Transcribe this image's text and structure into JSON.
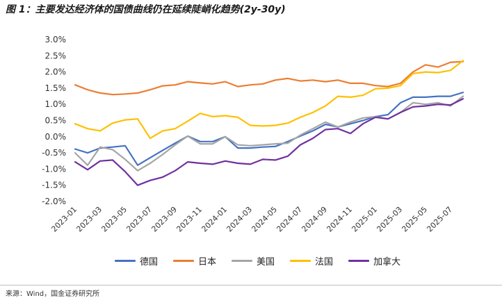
{
  "chart_data": {
    "type": "line",
    "title": "图 1：主要发达经济体的国债曲线仍在延续陡峭化趋势(2y-30y)",
    "xlabel": "",
    "ylabel": "",
    "ylim": [
      -2.0,
      3.0
    ],
    "yticks": [
      3.0,
      2.5,
      2.0,
      1.5,
      1.0,
      0.5,
      0.0,
      -0.5,
      -1.0,
      -1.5,
      -2.0
    ],
    "ytick_labels": [
      "3.0%",
      "2.5%",
      "2.0%",
      "1.5%",
      "1.0%",
      "0.5%",
      "0.0%",
      "-0.5%",
      "-1.0%",
      "-1.5%",
      "-2.0%"
    ],
    "grid": false,
    "legend_position": "bottom",
    "x": [
      "2023-01",
      "2023-02",
      "2023-03",
      "2023-04",
      "2023-05",
      "2023-06",
      "2023-07",
      "2023-08",
      "2023-09",
      "2023-10",
      "2023-11",
      "2023-12",
      "2024-01",
      "2024-02",
      "2024-03",
      "2024-04",
      "2024-05",
      "2024-06",
      "2024-07",
      "2024-08",
      "2024-09",
      "2024-10",
      "2024-11",
      "2024-12",
      "2025-01",
      "2025-02",
      "2025-03",
      "2025-04",
      "2025-05",
      "2025-06",
      "2025-07",
      "2025-08"
    ],
    "series": [
      {
        "name": "德国",
        "color": "#4472C4",
        "values": [
          -0.38,
          -0.5,
          -0.35,
          -0.32,
          -0.28,
          -0.88,
          -0.65,
          -0.42,
          -0.2,
          0.02,
          -0.15,
          -0.15,
          0.0,
          -0.35,
          -0.35,
          -0.32,
          -0.3,
          -0.15,
          0.02,
          0.18,
          0.38,
          0.3,
          0.4,
          0.5,
          0.62,
          0.68,
          1.05,
          1.22,
          1.22,
          1.25,
          1.25,
          1.37
        ]
      },
      {
        "name": "日本",
        "color": "#ED7D31",
        "values": [
          1.6,
          1.45,
          1.35,
          1.3,
          1.32,
          1.35,
          1.45,
          1.57,
          1.6,
          1.7,
          1.66,
          1.63,
          1.7,
          1.55,
          1.6,
          1.63,
          1.75,
          1.8,
          1.72,
          1.75,
          1.7,
          1.75,
          1.65,
          1.65,
          1.58,
          1.55,
          1.65,
          2.0,
          2.22,
          2.15,
          2.3,
          2.32
        ]
      },
      {
        "name": "美国",
        "color": "#A5A5A5",
        "values": [
          -0.5,
          -0.88,
          -0.32,
          -0.4,
          -0.7,
          -1.05,
          -0.82,
          -0.55,
          -0.25,
          0.02,
          -0.22,
          -0.22,
          0.0,
          -0.25,
          -0.28,
          -0.25,
          -0.22,
          -0.2,
          0.05,
          0.25,
          0.45,
          0.3,
          0.45,
          0.58,
          0.62,
          0.55,
          0.75,
          1.05,
          1.0,
          1.05,
          0.95,
          1.25
        ]
      },
      {
        "name": "法国",
        "color": "#FFC000",
        "values": [
          0.4,
          0.25,
          0.18,
          0.42,
          0.52,
          0.55,
          -0.05,
          0.18,
          0.25,
          0.48,
          0.72,
          0.62,
          0.65,
          0.6,
          0.35,
          0.33,
          0.35,
          0.42,
          0.6,
          0.75,
          0.95,
          1.25,
          1.22,
          1.28,
          1.48,
          1.5,
          1.58,
          1.95,
          2.0,
          1.98,
          2.05,
          2.35
        ]
      },
      {
        "name": "加拿大",
        "color": "#7030A0",
        "values": [
          -0.78,
          -1.02,
          -0.75,
          -0.72,
          -1.08,
          -1.5,
          -1.35,
          -1.25,
          -1.05,
          -0.78,
          -0.82,
          -0.85,
          -0.75,
          -0.82,
          -0.85,
          -0.7,
          -0.72,
          -0.6,
          -0.25,
          -0.05,
          0.22,
          0.25,
          0.1,
          0.4,
          0.6,
          0.55,
          0.75,
          0.92,
          0.95,
          1.0,
          0.98,
          1.17
        ]
      }
    ]
  },
  "source": "来源：Wind，国金证券研究所"
}
